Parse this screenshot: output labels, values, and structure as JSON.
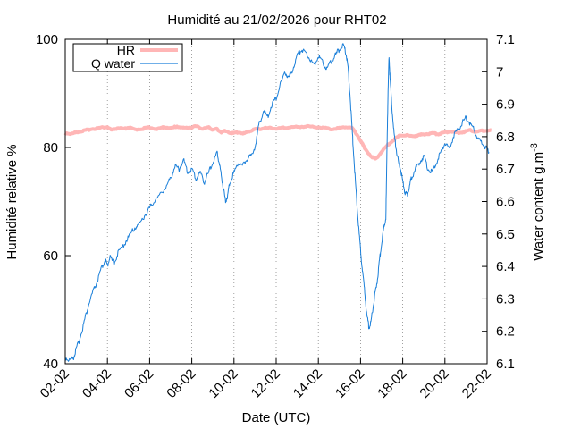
{
  "chart_data": {
    "type": "line",
    "title": "Humidité au 21/02/2026 pour RHT02",
    "xlabel": "Date (UTC)",
    "ylabel": "Humidité relative %",
    "ylabel2_base": "Water content g.m",
    "ylabel2_sup": "-3",
    "x_ticks": [
      "02-02",
      "04-02",
      "06-02",
      "08-02",
      "10-02",
      "12-02",
      "14-02",
      "16-02",
      "18-02",
      "20-02",
      "22-02"
    ],
    "ylim": [
      40,
      100
    ],
    "y_ticks": [
      "40",
      "60",
      "80",
      "100"
    ],
    "y2lim": [
      6.1,
      7.1
    ],
    "y2_ticks": [
      "6.1",
      "6.2",
      "6.3",
      "6.4",
      "6.5",
      "6.6",
      "6.7",
      "6.8",
      "6.9",
      "7",
      "7.1"
    ],
    "grid": "vertical dotted",
    "legend_position": "top-left",
    "series": [
      {
        "name": "HR",
        "axis": "left",
        "color": "#ffb6b6",
        "points": [
          [
            0.0,
            82.7
          ],
          [
            0.3,
            82.5
          ],
          [
            0.6,
            82.9
          ],
          [
            0.9,
            83.1
          ],
          [
            1.2,
            83.4
          ],
          [
            1.6,
            83.6
          ],
          [
            2.0,
            83.8
          ],
          [
            2.2,
            83.2
          ],
          [
            2.5,
            83.6
          ],
          [
            2.8,
            83.4
          ],
          [
            3.0,
            83.7
          ],
          [
            3.3,
            83.3
          ],
          [
            3.7,
            83.5
          ],
          [
            4.0,
            83.7
          ],
          [
            4.4,
            83.4
          ],
          [
            4.7,
            83.8
          ],
          [
            5.0,
            83.5
          ],
          [
            5.3,
            83.9
          ],
          [
            5.6,
            83.6
          ],
          [
            5.9,
            83.7
          ],
          [
            6.2,
            83.9
          ],
          [
            6.5,
            83.5
          ],
          [
            6.8,
            83.7
          ],
          [
            7.0,
            83.3
          ],
          [
            7.2,
            83.4
          ],
          [
            7.4,
            82.8
          ],
          [
            7.6,
            83.1
          ],
          [
            7.9,
            82.6
          ],
          [
            8.2,
            82.8
          ],
          [
            8.5,
            82.6
          ],
          [
            8.8,
            83.1
          ],
          [
            9.0,
            83.4
          ],
          [
            9.3,
            83.5
          ],
          [
            9.6,
            83.6
          ],
          [
            10.0,
            83.5
          ],
          [
            10.3,
            83.6
          ],
          [
            10.6,
            83.7
          ],
          [
            11.0,
            83.8
          ],
          [
            11.4,
            83.9
          ],
          [
            11.8,
            83.8
          ],
          [
            12.2,
            83.7
          ],
          [
            12.6,
            83.4
          ],
          [
            13.0,
            83.6
          ],
          [
            13.3,
            83.8
          ],
          [
            13.6,
            83.6
          ],
          [
            13.9,
            82.0
          ],
          [
            14.2,
            79.8
          ],
          [
            14.5,
            78.4
          ],
          [
            14.7,
            77.8
          ],
          [
            15.0,
            79.2
          ],
          [
            15.3,
            80.5
          ],
          [
            15.6,
            81.5
          ],
          [
            15.9,
            82.3
          ],
          [
            16.2,
            82.2
          ],
          [
            16.5,
            82.1
          ],
          [
            16.8,
            82.3
          ],
          [
            17.1,
            82.5
          ],
          [
            17.4,
            82.6
          ],
          [
            17.7,
            82.5
          ],
          [
            18.0,
            82.8
          ],
          [
            18.3,
            83.0
          ],
          [
            18.6,
            82.7
          ],
          [
            18.9,
            82.9
          ],
          [
            19.2,
            83.2
          ],
          [
            19.5,
            82.9
          ],
          [
            19.8,
            83.1
          ],
          [
            20.2,
            83.2
          ]
        ]
      },
      {
        "name": "Q water",
        "axis": "right",
        "color": "#1a7fd9",
        "points": [
          [
            0.0,
            6.12
          ],
          [
            0.2,
            6.11
          ],
          [
            0.4,
            6.12
          ],
          [
            0.5,
            6.14
          ],
          [
            0.7,
            6.18
          ],
          [
            0.9,
            6.23
          ],
          [
            1.1,
            6.28
          ],
          [
            1.3,
            6.32
          ],
          [
            1.5,
            6.35
          ],
          [
            1.7,
            6.39
          ],
          [
            1.9,
            6.42
          ],
          [
            2.0,
            6.4
          ],
          [
            2.1,
            6.43
          ],
          [
            2.3,
            6.41
          ],
          [
            2.5,
            6.44
          ],
          [
            2.8,
            6.47
          ],
          [
            3.0,
            6.49
          ],
          [
            3.3,
            6.52
          ],
          [
            3.5,
            6.53
          ],
          [
            3.8,
            6.56
          ],
          [
            4.0,
            6.58
          ],
          [
            4.2,
            6.6
          ],
          [
            4.5,
            6.62
          ],
          [
            4.8,
            6.65
          ],
          [
            5.0,
            6.67
          ],
          [
            5.2,
            6.71
          ],
          [
            5.4,
            6.7
          ],
          [
            5.6,
            6.73
          ],
          [
            5.8,
            6.69
          ],
          [
            6.0,
            6.7
          ],
          [
            6.2,
            6.67
          ],
          [
            6.4,
            6.69
          ],
          [
            6.6,
            6.66
          ],
          [
            6.8,
            6.69
          ],
          [
            7.0,
            6.72
          ],
          [
            7.2,
            6.75
          ],
          [
            7.3,
            6.72
          ],
          [
            7.4,
            6.68
          ],
          [
            7.5,
            6.64
          ],
          [
            7.6,
            6.6
          ],
          [
            7.7,
            6.62
          ],
          [
            7.8,
            6.66
          ],
          [
            8.0,
            6.69
          ],
          [
            8.2,
            6.72
          ],
          [
            8.4,
            6.71
          ],
          [
            8.6,
            6.73
          ],
          [
            8.8,
            6.74
          ],
          [
            9.0,
            6.77
          ],
          [
            9.2,
            6.84
          ],
          [
            9.4,
            6.88
          ],
          [
            9.6,
            6.86
          ],
          [
            9.8,
            6.9
          ],
          [
            10.0,
            6.92
          ],
          [
            10.2,
            6.96
          ],
          [
            10.4,
            7.0
          ],
          [
            10.6,
            6.98
          ],
          [
            10.8,
            7.01
          ],
          [
            11.0,
            7.05
          ],
          [
            11.2,
            7.07
          ],
          [
            11.4,
            7.06
          ],
          [
            11.6,
            7.04
          ],
          [
            11.8,
            7.02
          ],
          [
            12.0,
            7.05
          ],
          [
            12.2,
            7.03
          ],
          [
            12.4,
            7.01
          ],
          [
            12.6,
            7.03
          ],
          [
            12.8,
            7.05
          ],
          [
            13.0,
            7.07
          ],
          [
            13.2,
            7.08
          ],
          [
            13.3,
            7.06
          ],
          [
            13.4,
            7.02
          ],
          [
            13.5,
            6.93
          ],
          [
            13.6,
            6.82
          ],
          [
            13.7,
            6.72
          ],
          [
            13.8,
            6.62
          ],
          [
            13.9,
            6.53
          ],
          [
            14.0,
            6.45
          ],
          [
            14.1,
            6.38
          ],
          [
            14.2,
            6.32
          ],
          [
            14.3,
            6.25
          ],
          [
            14.4,
            6.21
          ],
          [
            14.5,
            6.23
          ],
          [
            14.6,
            6.28
          ],
          [
            14.7,
            6.32
          ],
          [
            14.8,
            6.36
          ],
          [
            14.9,
            6.42
          ],
          [
            15.0,
            6.47
          ],
          [
            15.1,
            6.52
          ],
          [
            15.2,
            6.55
          ],
          [
            15.25,
            6.75
          ],
          [
            15.3,
            6.92
          ],
          [
            15.35,
            7.05
          ],
          [
            15.4,
            6.98
          ],
          [
            15.5,
            6.88
          ],
          [
            15.6,
            6.8
          ],
          [
            15.7,
            6.76
          ],
          [
            15.8,
            6.72
          ],
          [
            15.9,
            6.7
          ],
          [
            16.0,
            6.66
          ],
          [
            16.1,
            6.63
          ],
          [
            16.2,
            6.62
          ],
          [
            16.3,
            6.64
          ],
          [
            16.4,
            6.67
          ],
          [
            16.6,
            6.7
          ],
          [
            16.8,
            6.72
          ],
          [
            17.0,
            6.74
          ],
          [
            17.2,
            6.7
          ],
          [
            17.4,
            6.69
          ],
          [
            17.6,
            6.72
          ],
          [
            17.8,
            6.75
          ],
          [
            18.0,
            6.78
          ],
          [
            18.2,
            6.76
          ],
          [
            18.4,
            6.8
          ],
          [
            18.6,
            6.82
          ],
          [
            18.8,
            6.84
          ],
          [
            19.0,
            6.86
          ],
          [
            19.2,
            6.84
          ],
          [
            19.4,
            6.82
          ],
          [
            19.6,
            6.79
          ],
          [
            19.8,
            6.78
          ],
          [
            20.0,
            6.76
          ],
          [
            20.1,
            6.75
          ]
        ]
      }
    ]
  }
}
